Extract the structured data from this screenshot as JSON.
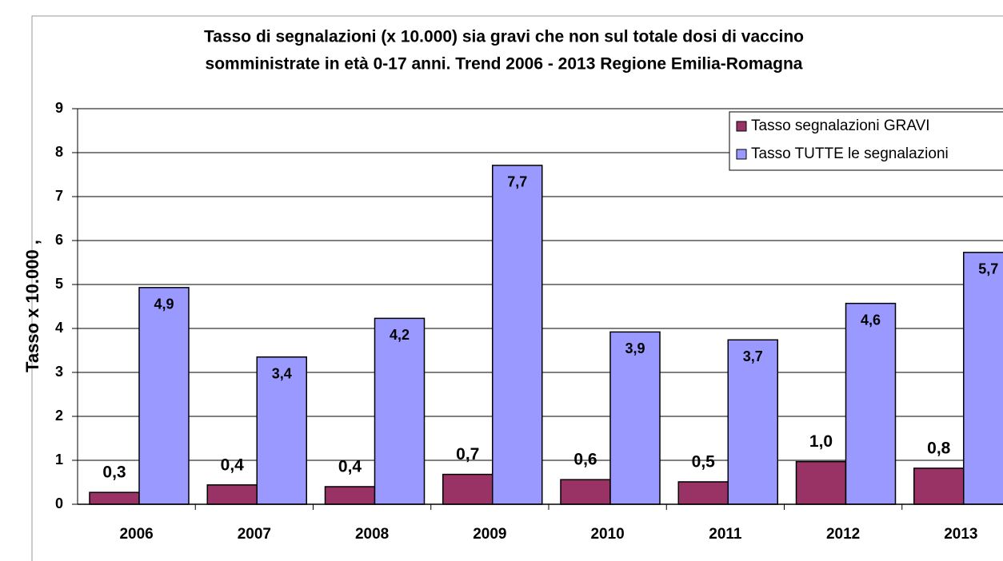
{
  "chart_data": {
    "type": "bar",
    "title": [
      "Tasso di segnalazioni (x 10.000)  sia gravi che non sul totale dosi di vaccino",
      "somministrate in età 0-17 anni. Trend 2006 - 2013 Regione Emilia-Romagna"
    ],
    "y_label": "Tasso x 10.000 ,",
    "categories": [
      "2006",
      "2007",
      "2008",
      "2009",
      "2010",
      "2011",
      "2012",
      "2013"
    ],
    "series": [
      {
        "name": "Tasso segnalazioni GRAVI",
        "color": "#993366",
        "values": [
          0.27,
          0.44,
          0.4,
          0.68,
          0.56,
          0.51,
          0.97,
          0.82
        ],
        "value_labels": [
          "0,3",
          "0,4",
          "0,4",
          "0,7",
          "0,6",
          "0,5",
          "1,0",
          "0,8"
        ]
      },
      {
        "name": "Tasso TUTTE le segnalazioni",
        "color": "#9999ff",
        "values": [
          4.93,
          3.35,
          4.23,
          7.71,
          3.92,
          3.74,
          4.57,
          5.73
        ],
        "value_labels": [
          "4,9",
          "3,4",
          "4,2",
          "7,7",
          "3,9",
          "3,7",
          "4,6",
          "5,7"
        ]
      }
    ],
    "ylim": [
      0,
      9
    ],
    "yticks": [
      0,
      1,
      2,
      3,
      4,
      5,
      6,
      7,
      8,
      9
    ],
    "grid": true,
    "legend": "top-right"
  }
}
